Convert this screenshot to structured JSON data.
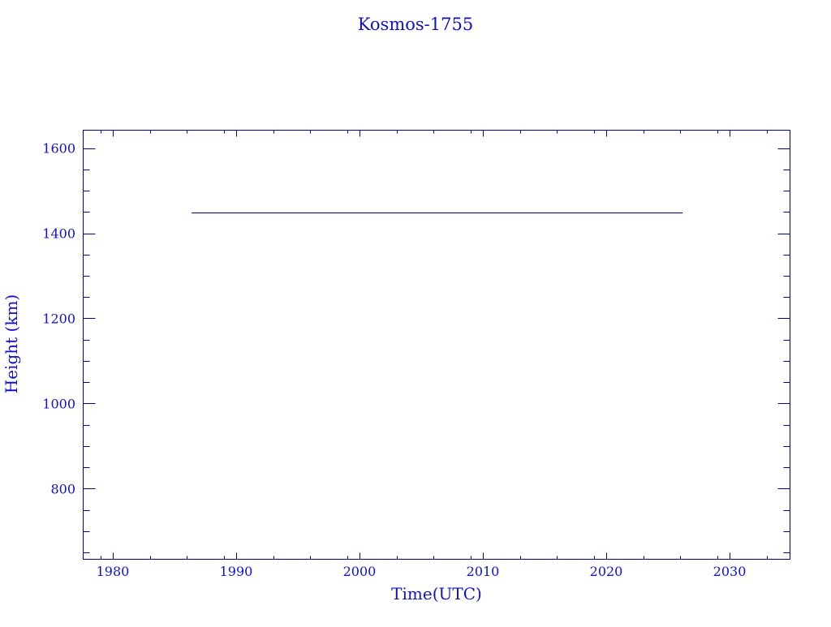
{
  "chart_data": {
    "type": "line",
    "title": "Kosmos-1755",
    "xlabel": "Time(UTC)",
    "ylabel": "Height (km)",
    "xlim": [
      1977.6,
      2034.9
    ],
    "ylim": [
      634,
      1642
    ],
    "xticks": [
      1980,
      1990,
      2000,
      2010,
      2020,
      2030
    ],
    "yticks": [
      800,
      1000,
      1200,
      1400,
      1600
    ],
    "grid": false,
    "series": [
      {
        "x": [
          1986.4,
          2026.2
        ],
        "y": [
          1448,
          1448
        ]
      }
    ],
    "colors": {
      "text": "#1010c8",
      "axis": "#000080",
      "line": "#000080"
    }
  }
}
